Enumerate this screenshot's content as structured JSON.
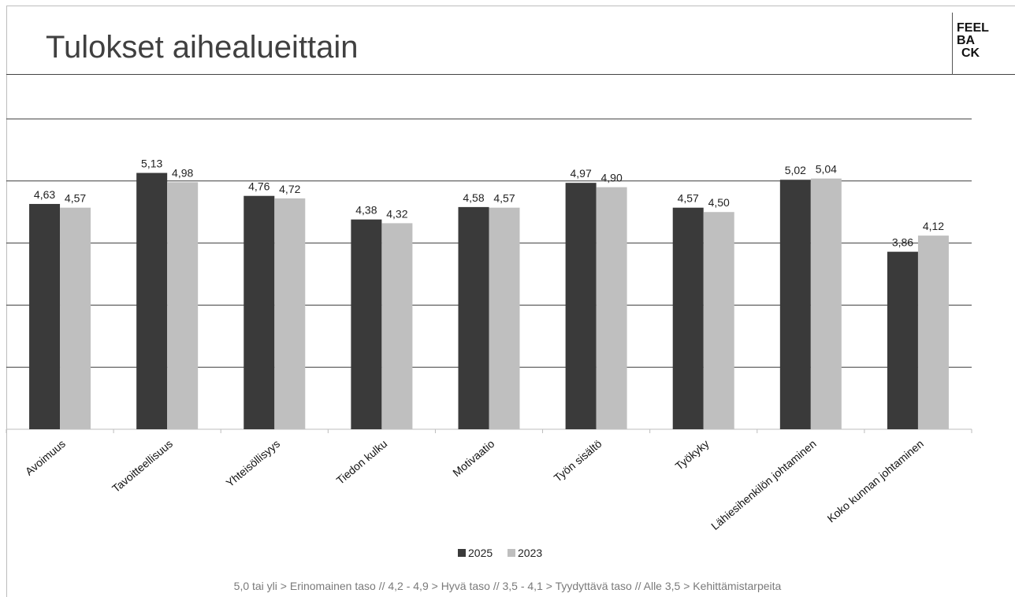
{
  "header": {
    "title": "Tulokset aihealueittain",
    "logo_lines": [
      "FEEL",
      "BA",
      "CK"
    ]
  },
  "chart_data": {
    "type": "bar",
    "categories": [
      "Avoimuus",
      "Tavoitteellisuus",
      "Yhteisöllisyys",
      "Tiedon kulku",
      "Motivaatio",
      "Työn sisältö",
      "Työkyky",
      "Lähiesihenkilön johtaminen",
      "Koko kunnan johtaminen"
    ],
    "series": [
      {
        "name": "2025",
        "values": [
          4.63,
          5.13,
          4.76,
          4.38,
          4.58,
          4.97,
          4.57,
          5.02,
          3.86
        ],
        "labels": [
          "4,63",
          "5,13",
          "4,76",
          "4,38",
          "4,58",
          "4,97",
          "4,57",
          "5,02",
          "3,86"
        ],
        "color": "#3a3a3a"
      },
      {
        "name": "2023",
        "values": [
          4.57,
          4.98,
          4.72,
          4.32,
          4.57,
          4.9,
          4.5,
          5.04,
          4.12
        ],
        "labels": [
          "4,57",
          "4,98",
          "4,72",
          "4,32",
          "4,57",
          "4,90",
          "4,50",
          "5,04",
          "4,12"
        ],
        "color": "#bfbfbf"
      }
    ],
    "ylim": [
      1,
      6
    ],
    "grid": true,
    "legend": "bottom-center",
    "xlabel": "",
    "ylabel": ""
  },
  "footnote": "5,0 tai yli > Erinomainen taso // 4,2 - 4,9 > Hyvä taso // 3,5 - 4,1 > Tyydyttävä taso // Alle 3,5 > Kehittämistarpeita"
}
